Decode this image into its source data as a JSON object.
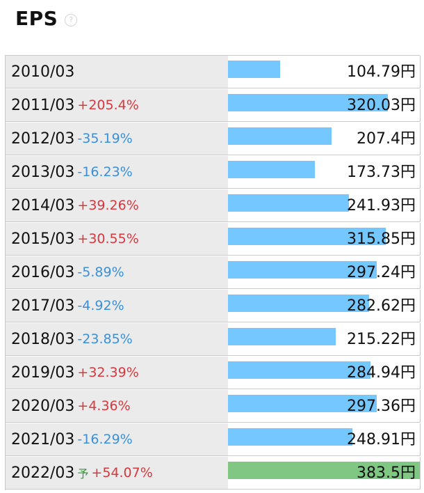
{
  "title": "EPS",
  "help_icon": "question-circle-icon",
  "colors": {
    "bar": "#74c8ff",
    "forecast_bar": "#80c783",
    "up": "#d9373e",
    "down": "#3a8fd9",
    "forecast_mark": "#3a8f3a"
  },
  "chart_data": {
    "type": "bar",
    "orientation": "horizontal",
    "title": "EPS",
    "unit": "円",
    "xlim": [
      0,
      383.5
    ],
    "categories": [
      "2010/03",
      "2011/03",
      "2012/03",
      "2013/03",
      "2014/03",
      "2015/03",
      "2016/03",
      "2017/03",
      "2018/03",
      "2019/03",
      "2020/03",
      "2021/03",
      "2022/03"
    ],
    "values": [
      104.79,
      320.03,
      207.4,
      173.73,
      241.93,
      315.85,
      297.24,
      282.62,
      215.22,
      284.94,
      297.36,
      248.91,
      383.5
    ],
    "changes": [
      "",
      "+205.4%",
      "-35.19%",
      "-16.23%",
      "+39.26%",
      "+30.55%",
      "-5.89%",
      "-4.92%",
      "-23.85%",
      "+32.39%",
      "+4.36%",
      "-16.29%",
      "+54.07%"
    ],
    "forecast": [
      false,
      false,
      false,
      false,
      false,
      false,
      false,
      false,
      false,
      false,
      false,
      false,
      true
    ],
    "forecast_label": "予"
  },
  "rows": [
    {
      "year": "2010/03",
      "change": "",
      "dir": "",
      "value_text": "104.79円",
      "forecast_mark": ""
    },
    {
      "year": "2011/03",
      "change": "+205.4%",
      "dir": "up",
      "value_text": "320.03円",
      "forecast_mark": ""
    },
    {
      "year": "2012/03",
      "change": "-35.19%",
      "dir": "down",
      "value_text": "207.4円",
      "forecast_mark": ""
    },
    {
      "year": "2013/03",
      "change": "-16.23%",
      "dir": "down",
      "value_text": "173.73円",
      "forecast_mark": ""
    },
    {
      "year": "2014/03",
      "change": "+39.26%",
      "dir": "up",
      "value_text": "241.93円",
      "forecast_mark": ""
    },
    {
      "year": "2015/03",
      "change": "+30.55%",
      "dir": "up",
      "value_text": "315.85円",
      "forecast_mark": ""
    },
    {
      "year": "2016/03",
      "change": "-5.89%",
      "dir": "down",
      "value_text": "297.24円",
      "forecast_mark": ""
    },
    {
      "year": "2017/03",
      "change": "-4.92%",
      "dir": "down",
      "value_text": "282.62円",
      "forecast_mark": ""
    },
    {
      "year": "2018/03",
      "change": "-23.85%",
      "dir": "down",
      "value_text": "215.22円",
      "forecast_mark": ""
    },
    {
      "year": "2019/03",
      "change": "+32.39%",
      "dir": "up",
      "value_text": "284.94円",
      "forecast_mark": ""
    },
    {
      "year": "2020/03",
      "change": "+4.36%",
      "dir": "up",
      "value_text": "297.36円",
      "forecast_mark": ""
    },
    {
      "year": "2021/03",
      "change": "-16.29%",
      "dir": "down",
      "value_text": "248.91円",
      "forecast_mark": ""
    },
    {
      "year": "2022/03",
      "change": "+54.07%",
      "dir": "up",
      "value_text": "383.5円",
      "forecast_mark": "予"
    }
  ]
}
